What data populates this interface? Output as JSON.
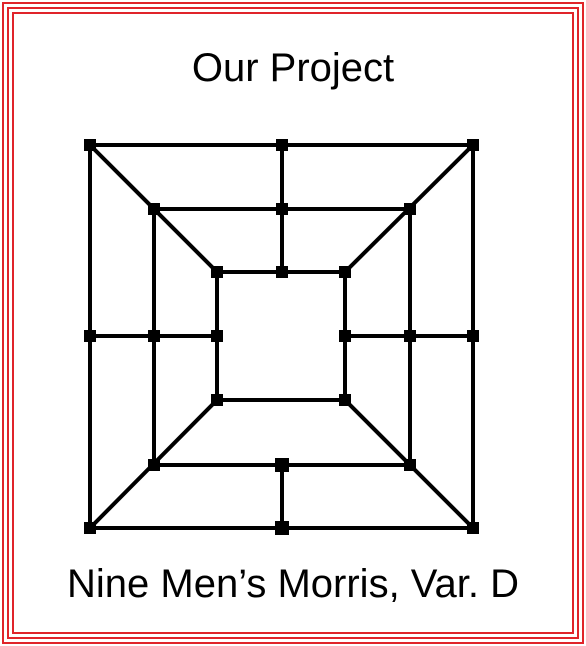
{
  "title": "Our Project",
  "caption": "Nine Men’s Morris, Var. D",
  "colors": {
    "frame": "#e0242a",
    "lines": "#000000",
    "background": "#ffffff"
  }
}
